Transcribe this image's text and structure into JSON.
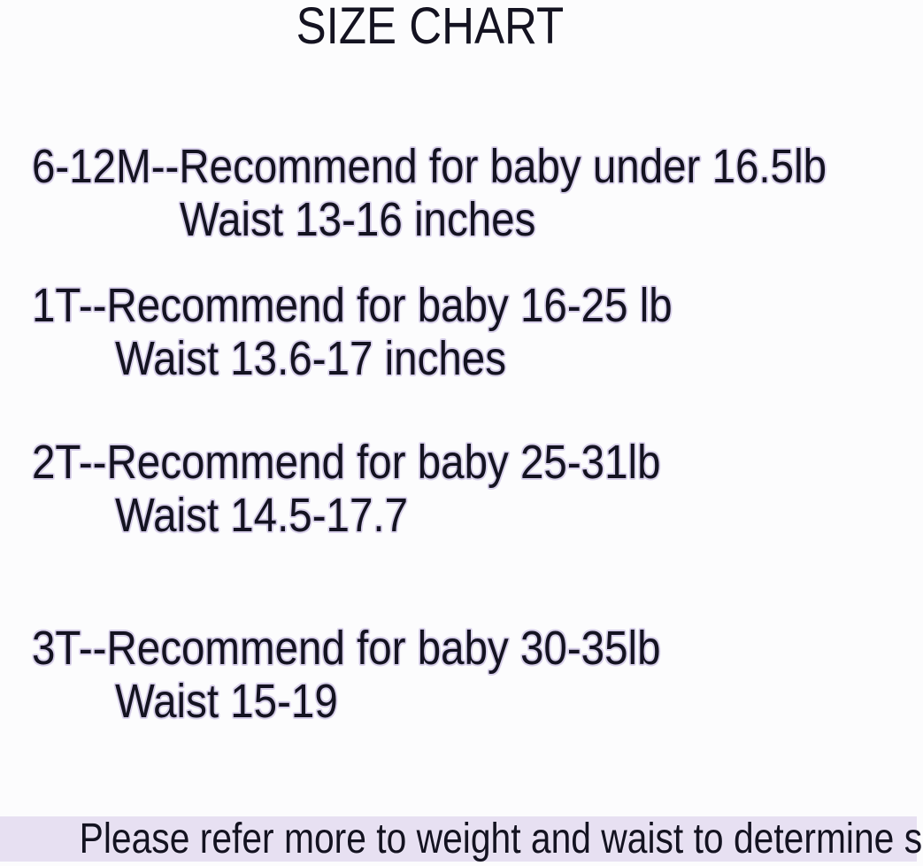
{
  "page": {
    "title": "SIZE CHART",
    "background_color": "#fcfcfd",
    "text_color": "#141321",
    "halo_color": "#d8d0ea"
  },
  "size_chart": {
    "items": [
      {
        "size": "6-12M",
        "recommend_line": "6-12M--Recommend for baby under 16.5lb",
        "waist_line": "Waist 13-16 inches"
      },
      {
        "size": "1T",
        "recommend_line": "1T--Recommend for baby 16-25 lb",
        "waist_line": "Waist 13.6-17 inches"
      },
      {
        "size": "2T",
        "recommend_line": "2T--Recommend for baby 25-31lb",
        "waist_line": "Waist 14.5-17.7"
      },
      {
        "size": "3T",
        "recommend_line": "3T--Recommend for baby 30-35lb",
        "waist_line": "Waist 15-19"
      }
    ]
  },
  "footer": {
    "note": "Please refer more to weight and waist to determine size.",
    "band_color": "#e7e0f2"
  }
}
